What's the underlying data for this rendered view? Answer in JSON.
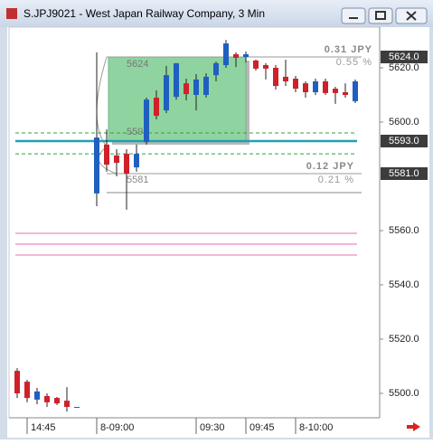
{
  "window": {
    "title": "S.JPJ9021 - West Japan Railway Company, 3 Min"
  },
  "chart_data": {
    "type": "candlestick",
    "categories": [
      null,
      "14:45",
      null,
      null,
      null,
      null,
      null,
      null,
      "8-09:00",
      null,
      null,
      null,
      null,
      null,
      null,
      null,
      null,
      null,
      "09:30",
      null,
      null,
      null,
      null,
      "09:45",
      null,
      null,
      null,
      null,
      "8-10:00",
      null,
      null,
      null,
      null,
      null,
      null
    ],
    "open": [
      5508.3,
      5504.3,
      5497.7,
      5499,
      5498.3,
      5497.3,
      5495,
      null,
      5573.7,
      5591.7,
      5587.7,
      5588.3,
      5583.3,
      5592.7,
      5609,
      5604.3,
      5609.3,
      5614.3,
      5610,
      5610,
      5617.3,
      5621,
      5625,
      5624,
      5622.7,
      5621,
      5620,
      5616.7,
      5616,
      5614.3,
      5611,
      5615,
      5612.3,
      5611,
      5607.7
    ],
    "high": [
      5509.3,
      5505,
      5502,
      5500,
      5498.7,
      5502.3,
      5495,
      null,
      5625.7,
      5597.3,
      5590,
      5590,
      5591.7,
      5609,
      5611.7,
      5620.7,
      5621.7,
      5616,
      5617.7,
      5618,
      5622.3,
      5630.3,
      5625.7,
      5626,
      5623,
      5621.7,
      5621,
      5623,
      5617,
      5615,
      5616,
      5616,
      5613,
      5614.3,
      5615.7
    ],
    "low": [
      5498.3,
      5496.7,
      5496,
      5495,
      5495.7,
      5493.3,
      5495,
      null,
      5569,
      5581.7,
      5580,
      5567.7,
      5581.7,
      5591.7,
      5601,
      5603.3,
      5608.3,
      5608,
      5604.3,
      5609,
      5615,
      5620,
      5620.3,
      5622,
      5619,
      5615.7,
      5612,
      5613.3,
      5611,
      5609,
      5610,
      5610,
      5606.7,
      5609,
      5607
    ],
    "close": [
      5500,
      5498.3,
      5500.7,
      5496.7,
      5496.3,
      5495,
      5495,
      null,
      5594.3,
      5584.3,
      5585,
      5581,
      5588.3,
      5608.3,
      5602.3,
      5617.3,
      5621.7,
      5610.3,
      5615.7,
      5616.7,
      5621.7,
      5629,
      5623.7,
      5625,
      5619.7,
      5619.7,
      5613.3,
      5615,
      5612.3,
      5611,
      5615,
      5610.7,
      5610.7,
      5610,
      5615
    ],
    "up_color": "#1f5fc0",
    "down_color": "#d0202a",
    "ylim": [
      5491,
      5635
    ],
    "yticks": [
      {
        "value": 5500,
        "label": "5500.0"
      },
      {
        "value": 5520,
        "label": "5520.0"
      },
      {
        "value": 5540,
        "label": "5540.0"
      },
      {
        "value": 5560,
        "label": "5560.0"
      },
      {
        "value": 5600,
        "label": "5600.0"
      },
      {
        "value": 5620,
        "label": "5620.0"
      }
    ],
    "price_labels": [
      {
        "value": 5624,
        "label": "5624.0"
      },
      {
        "value": 5593,
        "label": "5593.0"
      },
      {
        "value": 5581,
        "label": "5581.0"
      }
    ],
    "levels": [
      {
        "value": 5593,
        "color": "#20a0b0",
        "style": "solid"
      },
      {
        "value": 5596,
        "color": "#30a040",
        "style": "dash"
      },
      {
        "value": 5588.3,
        "color": "#30a040",
        "style": "dash"
      },
      {
        "value": 5624,
        "color": "#999999",
        "style": "solid"
      },
      {
        "value": 5581,
        "color": "#999999",
        "style": "solid"
      },
      {
        "value": 5574,
        "color": "#888888",
        "style": "solid"
      },
      {
        "value": 5559,
        "color": "#e070b0",
        "style": "solid"
      },
      {
        "value": 5555,
        "color": "#e070b0",
        "style": "solid"
      },
      {
        "value": 5551,
        "color": "#e070b0",
        "style": "solid"
      }
    ],
    "box": {
      "high": 5624,
      "low": 5593,
      "color": "#8fd4a0"
    },
    "measure_low": 5581,
    "annotations": [
      "0.31 JPY",
      "0.55 %",
      "0.12 JPY",
      "0.21 %"
    ]
  }
}
